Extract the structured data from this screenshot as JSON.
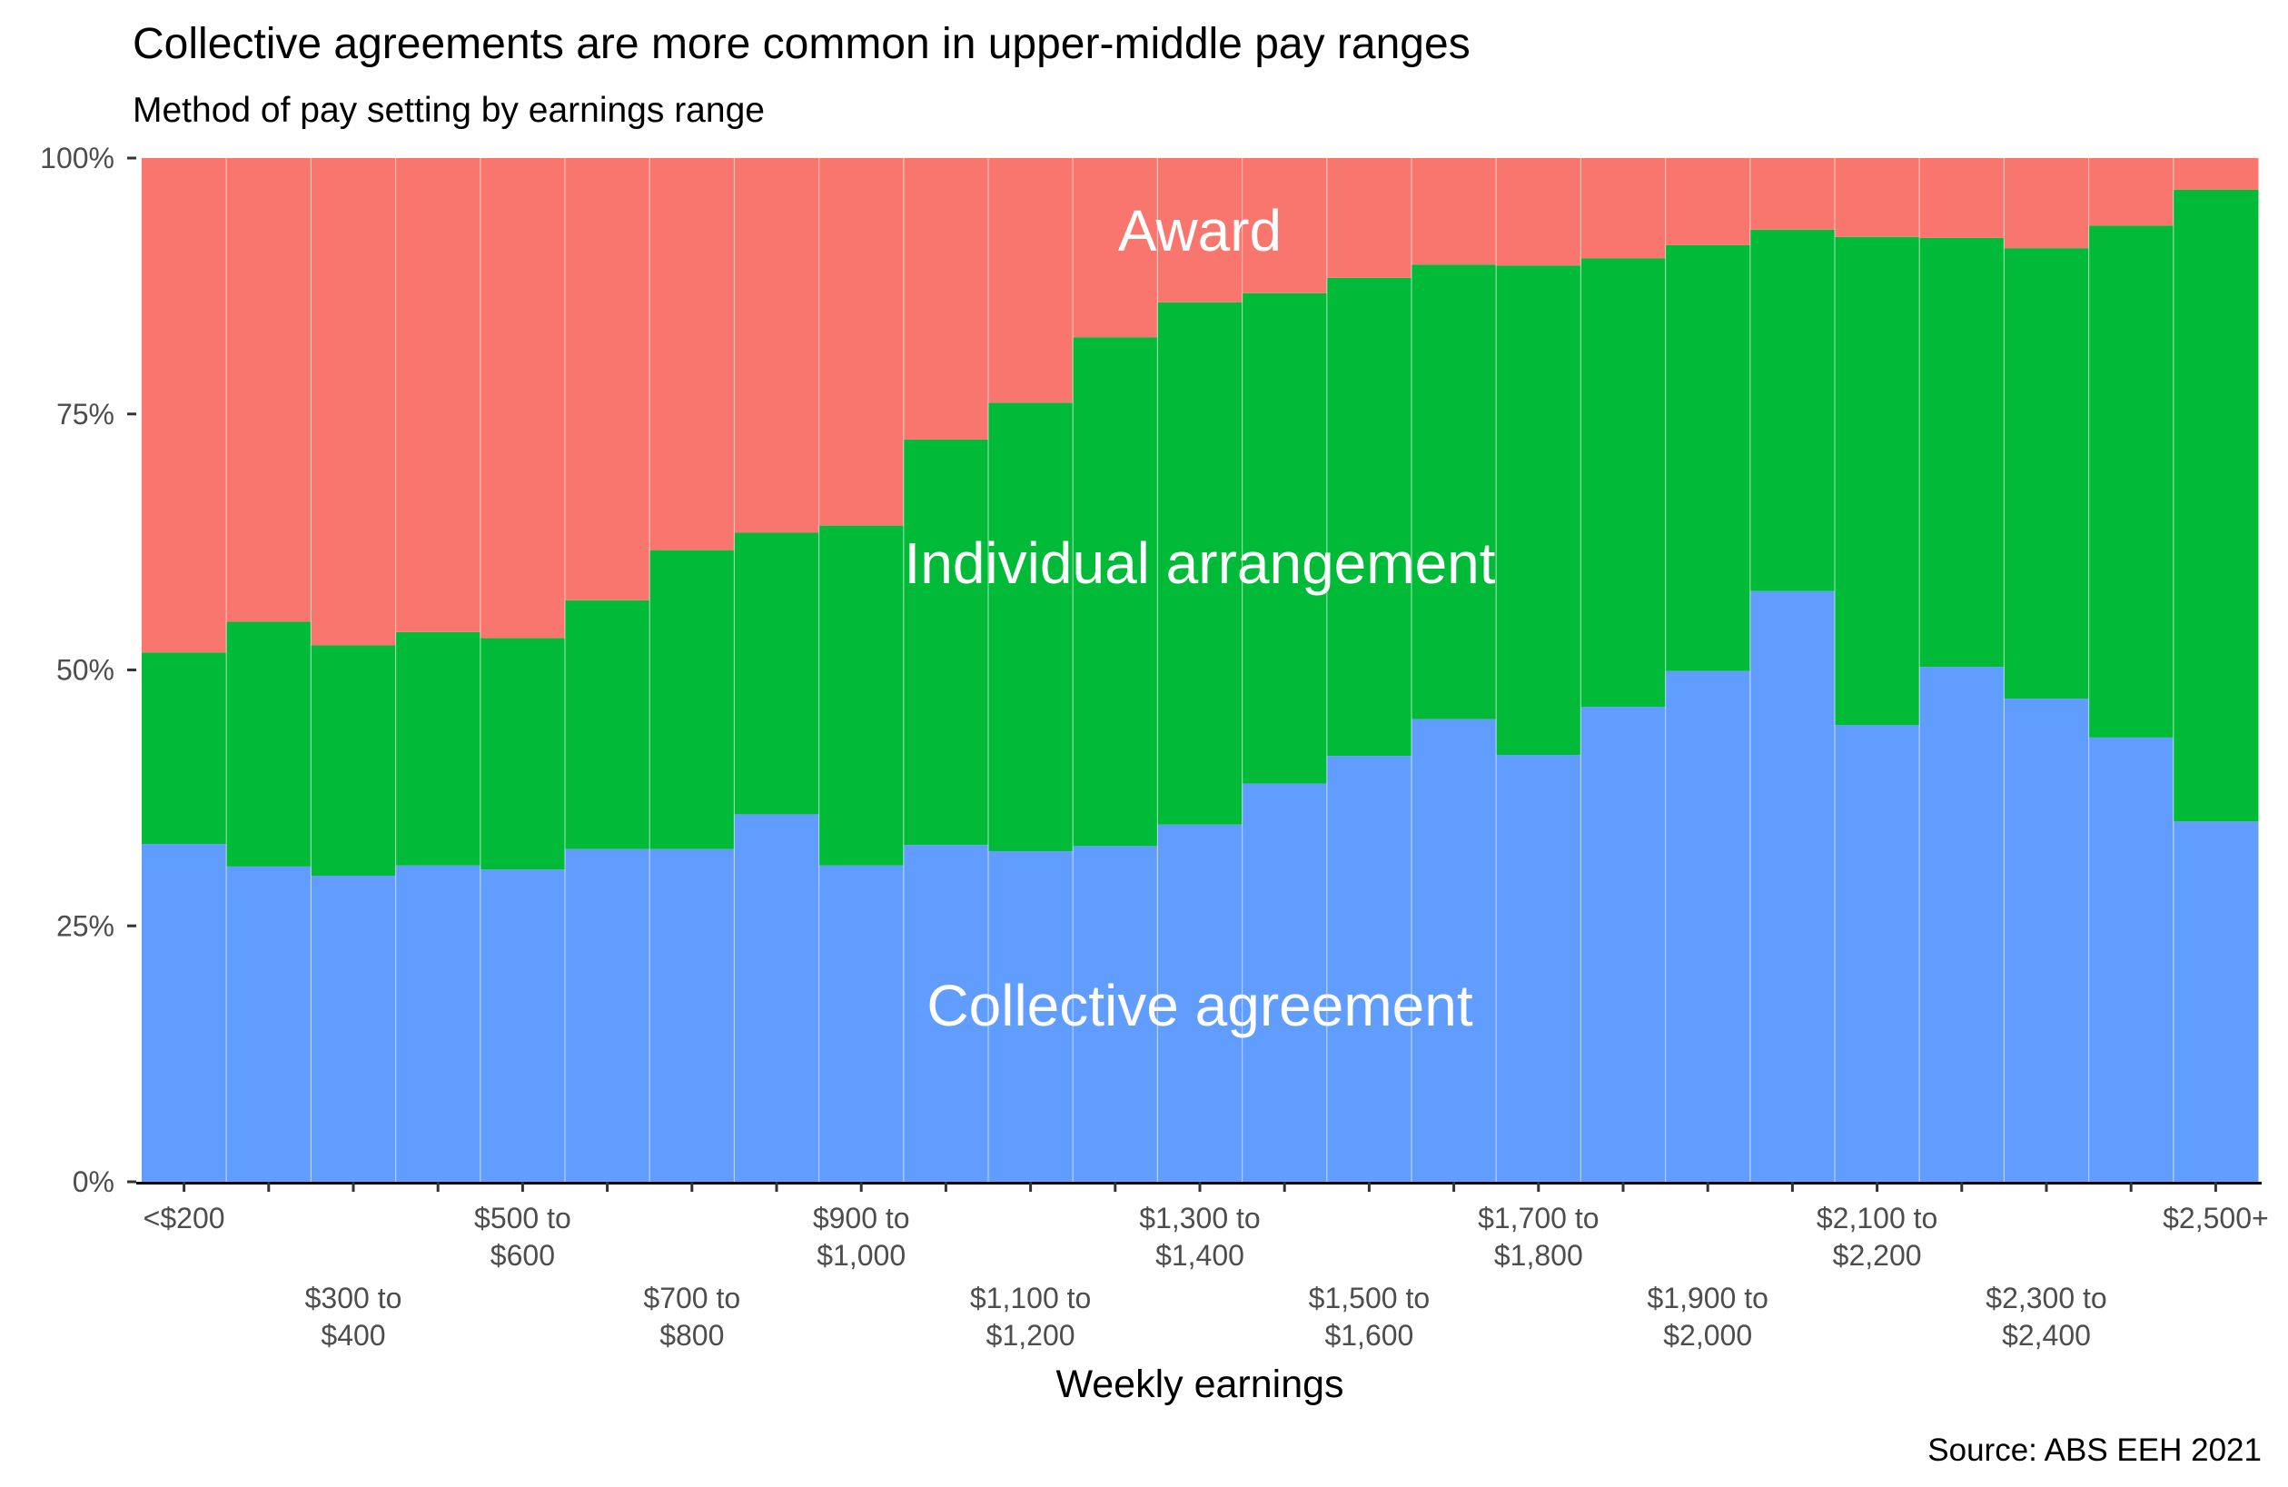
{
  "chart_data": {
    "type": "bar",
    "stacked": "percent",
    "title": "Collective agreements are more common in upper-middle pay ranges",
    "subtitle": "Method of pay setting by earnings range",
    "xlabel": "Weekly earnings",
    "ylabel": "",
    "caption": "Source: ABS EEH 2021",
    "ylim": [
      0,
      100
    ],
    "y_ticks": [
      "0%",
      "25%",
      "50%",
      "75%",
      "100%"
    ],
    "y_tick_values": [
      0,
      25,
      50,
      75,
      100
    ],
    "tick_labels": [
      "<$200",
      "",
      "$300 to\n$400",
      "",
      "$500 to\n$600",
      "",
      "$700 to\n$800",
      "",
      "$900 to\n$1,000",
      "",
      "$1,100 to\n$1,200",
      "",
      "$1,300 to\n$1,400",
      "",
      "$1,500 to\n$1,600",
      "",
      "$1,700 to\n$1,800",
      "",
      "$1,900 to\n$2,000",
      "",
      "$2,100 to\n$2,200",
      "",
      "$2,300 to\n$2,400",
      "",
      "$2,500+"
    ],
    "series": [
      {
        "name": "Collective agreement",
        "color": "#619CFF",
        "values": [
          33.0,
          30.8,
          29.9,
          30.9,
          30.5,
          32.5,
          32.5,
          35.9,
          30.9,
          32.9,
          32.3,
          32.8,
          34.9,
          38.9,
          41.6,
          45.2,
          41.7,
          46.4,
          49.9,
          57.7,
          44.6,
          50.3,
          47.2,
          43.4,
          35.2
        ]
      },
      {
        "name": "Individual arrangement",
        "color": "#00BA38",
        "values": [
          18.7,
          23.9,
          22.5,
          22.8,
          22.6,
          24.3,
          29.2,
          27.5,
          33.2,
          39.6,
          43.8,
          49.7,
          51.0,
          47.9,
          46.7,
          44.4,
          47.8,
          43.8,
          41.6,
          35.3,
          47.7,
          41.9,
          44.0,
          50.0,
          61.7
        ]
      },
      {
        "name": "Award",
        "color": "#F8766D",
        "values": [
          48.3,
          45.3,
          47.6,
          46.3,
          46.9,
          43.2,
          38.3,
          36.6,
          35.9,
          27.5,
          23.9,
          17.5,
          14.1,
          13.2,
          11.7,
          10.4,
          10.5,
          9.8,
          8.5,
          7.0,
          7.7,
          7.8,
          8.8,
          6.6,
          3.1
        ]
      }
    ],
    "series_labels": [
      "Award",
      "Individual arrangement",
      "Collective agreement"
    ],
    "legend": "none (direct labels)"
  }
}
